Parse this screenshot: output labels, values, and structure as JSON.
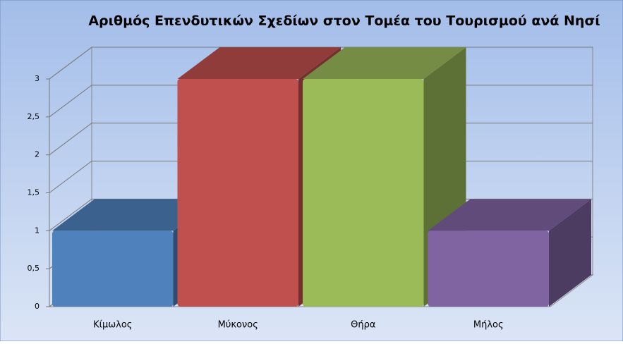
{
  "chart_data": {
    "type": "bar3d",
    "title": "Αριθμός Επενδυτικών Σχεδίων στον Τομέα του Τουρισμού ανά Νησί",
    "categories": [
      "Κίμωλος",
      "Μύκονος",
      "Θήρα",
      "Μήλος"
    ],
    "values": [
      1,
      3,
      3,
      1
    ],
    "colors": [
      "#4f81bd",
      "#c0504d",
      "#9bbb59",
      "#8064a2"
    ],
    "ylim": [
      0,
      3
    ],
    "yticks": [
      0,
      {
        "value": 0.5,
        "label": "0,5"
      },
      1,
      {
        "value": 1.5,
        "label": "1,5"
      },
      2,
      {
        "value": 2.5,
        "label": "2,5"
      },
      3
    ],
    "grid": true
  }
}
